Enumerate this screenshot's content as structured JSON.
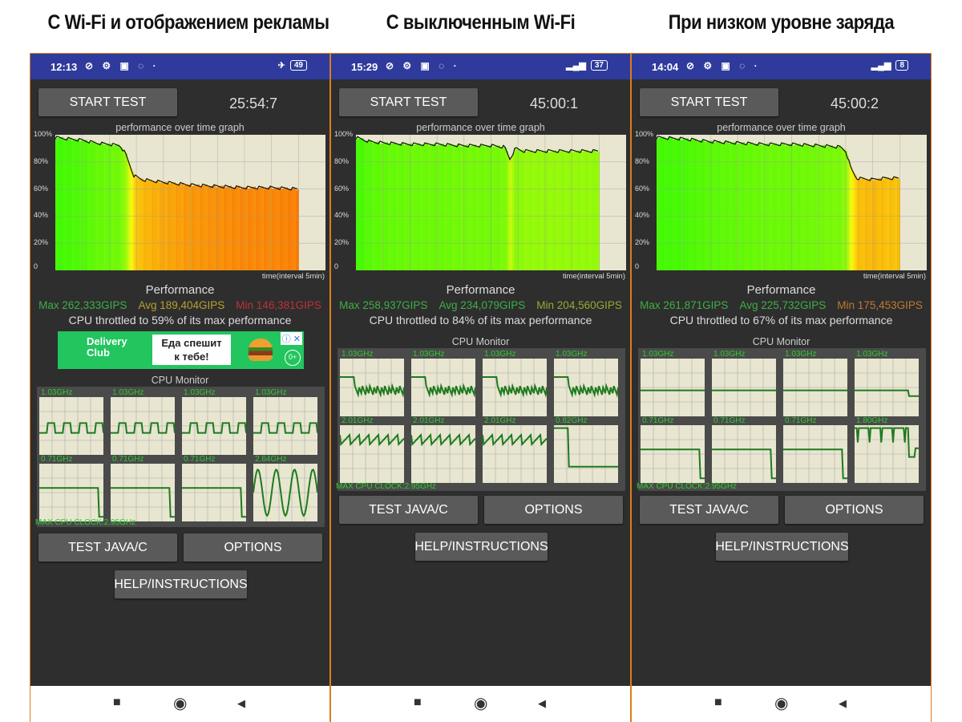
{
  "panels": [
    {
      "headline": "С Wi-Fi и отображением рекламы",
      "status": {
        "time": "12:13",
        "icons": [
          "silent-icon",
          "gear-icon",
          "sim-icon",
          "location-icon",
          "dot-icon"
        ],
        "right_icon": "airplane-icon",
        "battery": "49"
      },
      "start_test_label": "START TEST",
      "timer": "25:54:7",
      "graph_title": "performance over time graph",
      "y_ticks": [
        "100%",
        "80%",
        "60%",
        "40%",
        "20%",
        "0"
      ],
      "time_label": "time(interval 5min)",
      "perf_title": "Performance",
      "stats": {
        "max": "Max 262,333GIPS",
        "avg": "Avg 189,404GIPS",
        "min": "Min 146,381GIPS",
        "min_color": "#c0303a"
      },
      "throttled": "CPU throttled to 59% of its max performance",
      "ad": {
        "brand": "Delivery Club",
        "line1": "Еда спешит",
        "line2": "к тебе!",
        "age": "0+",
        "info": "ⓘ ✕"
      },
      "cpu_monitor_title": "CPU Monitor",
      "cores": [
        {
          "freq": "1.03GHz",
          "trace": "square"
        },
        {
          "freq": "1.03GHz",
          "trace": "square"
        },
        {
          "freq": "1.03GHz",
          "trace": "square"
        },
        {
          "freq": "1.03GHz",
          "trace": "square"
        },
        {
          "freq": "0.71GHz",
          "trace": "flat-drop-end"
        },
        {
          "freq": "0.71GHz",
          "trace": "flat-drop-end"
        },
        {
          "freq": "0.71GHz",
          "trace": "flat-drop-end"
        },
        {
          "freq": "2.64GHz",
          "trace": "sine"
        }
      ],
      "max_cpu_clock": "MAX CPU CLOCK:2.95GHz",
      "test_label": "TEST JAVA/C",
      "options_label": "OPTIONS",
      "help_label": "HELP/INSTRUCTIONS",
      "chart_data": {
        "type": "area",
        "ylabel_ticks": [
          "0",
          "20%",
          "40%",
          "60%",
          "80%",
          "100%"
        ],
        "ylim": [
          0,
          100
        ],
        "x_fraction": [
          0,
          0.05,
          0.1,
          0.15,
          0.2,
          0.24,
          0.26,
          0.29,
          0.32,
          0.4,
          0.5,
          0.6,
          0.7,
          0.8,
          0.9
        ],
        "values": [
          98,
          97,
          96,
          94,
          93,
          92,
          86,
          70,
          67,
          65,
          63,
          62,
          61,
          61,
          60
        ]
      }
    },
    {
      "headline": "С выключенным Wi-Fi",
      "status": {
        "time": "15:29",
        "icons": [
          "silent-icon",
          "notes-icon",
          "gear-icon",
          "vpn-icon",
          "more-icon"
        ],
        "right_icon": "signal-icon",
        "battery": "37"
      },
      "start_test_label": "START TEST",
      "timer": "45:00:1",
      "graph_title": "performance over time graph",
      "y_ticks": [
        "100%",
        "80%",
        "60%",
        "40%",
        "20%",
        "0"
      ],
      "time_label": "time(interval 5min)",
      "perf_title": "Performance",
      "stats": {
        "max": "Max 258,937GIPS",
        "avg": "Avg 234,079GIPS",
        "min": "Min 204,560GIPS",
        "min_color": "#9aa830"
      },
      "throttled": "CPU throttled to 84% of its max performance",
      "cpu_monitor_title": "CPU Monitor",
      "cores": [
        {
          "freq": "1.03GHz",
          "trace": "step-noisy"
        },
        {
          "freq": "1.03GHz",
          "trace": "step-noisy"
        },
        {
          "freq": "1.03GHz",
          "trace": "step-noisy"
        },
        {
          "freq": "1.03GHz",
          "trace": "step-noisy"
        },
        {
          "freq": "2.01GHz",
          "trace": "noisy-high"
        },
        {
          "freq": "2.01GHz",
          "trace": "noisy-high"
        },
        {
          "freq": "2.01GHz",
          "trace": "noisy-high"
        },
        {
          "freq": "0.82GHz",
          "trace": "top-drop"
        }
      ],
      "max_cpu_clock": "MAX CPU CLOCK:2.95GHz",
      "test_label": "TEST JAVA/C",
      "options_label": "OPTIONS",
      "help_label": "HELP/INSTRUCTIONS",
      "chart_data": {
        "type": "area",
        "ylabel_ticks": [
          "0",
          "20%",
          "40%",
          "60%",
          "80%",
          "100%"
        ],
        "ylim": [
          0,
          100
        ],
        "x_fraction": [
          0,
          0.05,
          0.1,
          0.2,
          0.3,
          0.4,
          0.5,
          0.55,
          0.57,
          0.59,
          0.62,
          0.7,
          0.8,
          0.9
        ],
        "values": [
          98,
          95,
          94,
          93,
          93,
          92,
          92,
          91,
          82,
          90,
          88,
          88,
          88,
          88
        ]
      }
    },
    {
      "headline": "При низком уровне заряда",
      "status": {
        "time": "14:04",
        "icons": [
          "silent-icon",
          "gear-icon",
          "vpn-icon",
          "sim-icon",
          "more-icon"
        ],
        "right_icon": "signal-icon",
        "battery": "8"
      },
      "start_test_label": "START TEST",
      "timer": "45:00:2",
      "graph_title": "performance over time graph",
      "y_ticks": [
        "100%",
        "80%",
        "60%",
        "40%",
        "20%",
        "0"
      ],
      "time_label": "time(interval 5min)",
      "perf_title": "Performance",
      "stats": {
        "max": "Max 261,871GIPS",
        "avg": "Avg 225,732GIPS",
        "min": "Min 175,453GIPS",
        "min_color": "#c07830"
      },
      "throttled": "CPU throttled to 67% of its max performance",
      "cpu_monitor_title": "CPU Monitor",
      "cores": [
        {
          "freq": "1.03GHz",
          "trace": "flat"
        },
        {
          "freq": "1.03GHz",
          "trace": "flat"
        },
        {
          "freq": "1.03GHz",
          "trace": "flat"
        },
        {
          "freq": "1.03GHz",
          "trace": "flat-small-drop"
        },
        {
          "freq": "0.71GHz",
          "trace": "flat-drop-end"
        },
        {
          "freq": "0.71GHz",
          "trace": "flat-drop-end"
        },
        {
          "freq": "0.71GHz",
          "trace": "flat-drop-end"
        },
        {
          "freq": "1.80GHz",
          "trace": "top-dips"
        }
      ],
      "max_cpu_clock": "MAX CPU CLOCK:2.95GHz",
      "test_label": "TEST JAVA/C",
      "options_label": "OPTIONS",
      "help_label": "HELP/INSTRUCTIONS",
      "chart_data": {
        "type": "area",
        "ylabel_ticks": [
          "0",
          "20%",
          "40%",
          "60%",
          "80%",
          "100%"
        ],
        "ylim": [
          0,
          100
        ],
        "x_fraction": [
          0,
          0.1,
          0.2,
          0.3,
          0.4,
          0.5,
          0.6,
          0.68,
          0.7,
          0.72,
          0.74,
          0.8,
          0.85,
          0.9
        ],
        "values": [
          98,
          97,
          95,
          94,
          93,
          93,
          92,
          91,
          88,
          75,
          68,
          67,
          68,
          68
        ]
      }
    }
  ],
  "nav": {
    "recent": "■",
    "home": "◉",
    "back": "◀"
  },
  "colors": {
    "status_bar": "#2e3b9c",
    "background": "#2e2e2e",
    "button": "#5a5a5a",
    "plot_bg": "#e8e6d0",
    "trace": "#1e7a1e",
    "max": "#3cb043",
    "avg": "#b8a030"
  }
}
